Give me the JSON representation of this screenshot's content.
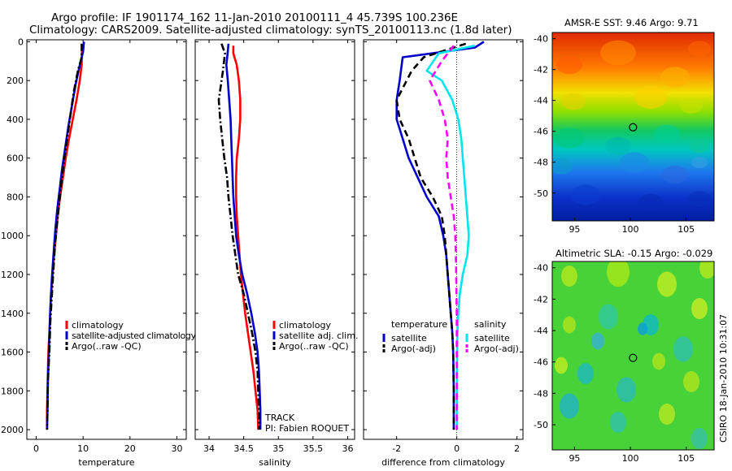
{
  "title_line1": "Argo profile: IF 1901174_162 11-Jan-2010 20100111_4 45.739S 100.236E",
  "title_line2": "Climatology: CARS2009. Satellite-adjusted climatology: synTS_20100113.nc (1.8d later)",
  "map_titles": [
    "AMSR-E SST: 9.46 Argo: 9.71",
    "Altimetric SLA: -0.15 Argo: -0.029"
  ],
  "credit": "CSIRO 18-Jan-2010 10:31:07",
  "colors": {
    "climatology": "#ff0000",
    "satellite": "#0000cc",
    "argo": "#000000",
    "salinity_satellite": "#00e5ee",
    "salinity_argo": "#ff00ff"
  },
  "chart_data": [
    {
      "type": "line",
      "xlabel": "temperature",
      "x_ticks": [
        "0",
        "10",
        "20",
        "30"
      ],
      "y_ticks": [
        "0",
        "200",
        "400",
        "600",
        "800",
        "1000",
        "1200",
        "1400",
        "1600",
        "1800",
        "2000"
      ],
      "xlim": [
        -2,
        32
      ],
      "ylim": [
        2050,
        -10
      ],
      "y_reversed": true,
      "legend_position": "lower-center",
      "legend": [
        "climatology",
        "satellite-adjusted climatology",
        "Argo(..raw -QC)"
      ],
      "series": [
        {
          "name": "climatology",
          "style": "solid",
          "color_key": "climatology",
          "points": [
            [
              9.8,
              20
            ],
            [
              9.7,
              120
            ],
            [
              9.3,
              200
            ],
            [
              8.6,
              300
            ],
            [
              7.8,
              400
            ],
            [
              7.0,
              500
            ],
            [
              6.3,
              600
            ],
            [
              5.7,
              700
            ],
            [
              5.1,
              800
            ],
            [
              4.6,
              900
            ],
            [
              4.2,
              1000
            ],
            [
              3.8,
              1100
            ],
            [
              3.5,
              1200
            ],
            [
              3.2,
              1300
            ],
            [
              3.0,
              1400
            ],
            [
              2.8,
              1500
            ],
            [
              2.6,
              1600
            ],
            [
              2.5,
              1700
            ],
            [
              2.4,
              1800
            ],
            [
              2.3,
              1900
            ],
            [
              2.3,
              2000
            ]
          ]
        },
        {
          "name": "satellite-adjusted climatology",
          "style": "solid",
          "color_key": "satellite",
          "points": [
            [
              10.2,
              0
            ],
            [
              10.1,
              20
            ],
            [
              10.0,
              50
            ],
            [
              9.2,
              130
            ],
            [
              8.4,
              220
            ],
            [
              7.7,
              320
            ],
            [
              6.9,
              430
            ],
            [
              6.1,
              560
            ],
            [
              5.5,
              660
            ],
            [
              5.0,
              760
            ],
            [
              4.5,
              860
            ],
            [
              4.1,
              960
            ],
            [
              3.8,
              1060
            ],
            [
              3.4,
              1200
            ],
            [
              3.1,
              1320
            ],
            [
              2.9,
              1450
            ],
            [
              2.7,
              1600
            ],
            [
              2.5,
              1750
            ],
            [
              2.4,
              1900
            ],
            [
              2.3,
              2000
            ]
          ]
        },
        {
          "name": "Argo(..raw -QC)",
          "style": "dashdot",
          "color_key": "argo",
          "points": [
            [
              9.7,
              10
            ],
            [
              9.7,
              80
            ],
            [
              8.9,
              150
            ],
            [
              8.0,
              260
            ],
            [
              7.3,
              380
            ],
            [
              6.6,
              500
            ],
            [
              6.0,
              600
            ],
            [
              5.4,
              720
            ],
            [
              4.9,
              830
            ],
            [
              4.4,
              950
            ],
            [
              4.0,
              1050
            ],
            [
              3.6,
              1200
            ],
            [
              3.3,
              1320
            ],
            [
              3.0,
              1450
            ],
            [
              2.8,
              1600
            ],
            [
              2.5,
              1750
            ],
            [
              2.4,
              1900
            ],
            [
              2.3,
              2000
            ]
          ]
        }
      ]
    },
    {
      "type": "line",
      "xlabel": "salinity",
      "x_ticks": [
        "34",
        "34.5",
        "35",
        "35.5",
        "36"
      ],
      "y_ticks": [],
      "xlim": [
        33.8,
        36.1
      ],
      "ylim": [
        2050,
        -10
      ],
      "y_reversed": true,
      "legend_position": "lower-center",
      "legend": [
        "climatology",
        "satellite adj. clim.",
        "Argo(..raw -QC)"
      ],
      "annotations": [
        "TRACK",
        "PI: Fabien ROQUET"
      ],
      "series": [
        {
          "name": "climatology",
          "style": "solid",
          "color_key": "climatology",
          "points": [
            [
              34.35,
              20
            ],
            [
              34.35,
              60
            ],
            [
              34.4,
              120
            ],
            [
              34.43,
              200
            ],
            [
              34.45,
              300
            ],
            [
              34.45,
              400
            ],
            [
              34.43,
              500
            ],
            [
              34.4,
              600
            ],
            [
              34.39,
              700
            ],
            [
              34.39,
              800
            ],
            [
              34.4,
              900
            ],
            [
              34.42,
              1000
            ],
            [
              34.44,
              1100
            ],
            [
              34.46,
              1200
            ],
            [
              34.49,
              1300
            ],
            [
              34.52,
              1400
            ],
            [
              34.56,
              1500
            ],
            [
              34.6,
              1600
            ],
            [
              34.64,
              1700
            ],
            [
              34.67,
              1800
            ],
            [
              34.7,
              1900
            ],
            [
              34.71,
              2000
            ]
          ]
        },
        {
          "name": "satellite adj. clim.",
          "style": "solid",
          "color_key": "satellite",
          "points": [
            [
              34.28,
              10
            ],
            [
              34.27,
              50
            ],
            [
              34.25,
              120
            ],
            [
              34.27,
              200
            ],
            [
              34.29,
              300
            ],
            [
              34.31,
              400
            ],
            [
              34.32,
              500
            ],
            [
              34.33,
              600
            ],
            [
              34.34,
              700
            ],
            [
              34.35,
              800
            ],
            [
              34.37,
              900
            ],
            [
              34.39,
              1000
            ],
            [
              34.43,
              1100
            ],
            [
              34.48,
              1200
            ],
            [
              34.55,
              1300
            ],
            [
              34.61,
              1400
            ],
            [
              34.66,
              1500
            ],
            [
              34.7,
              1600
            ],
            [
              34.72,
              1700
            ],
            [
              34.73,
              1800
            ],
            [
              34.74,
              1900
            ],
            [
              34.74,
              2000
            ]
          ]
        },
        {
          "name": "Argo(..raw -QC)",
          "style": "dashdot",
          "color_key": "argo",
          "points": [
            [
              34.18,
              10
            ],
            [
              34.23,
              60
            ],
            [
              34.2,
              150
            ],
            [
              34.14,
              300
            ],
            [
              34.16,
              400
            ],
            [
              34.19,
              500
            ],
            [
              34.22,
              600
            ],
            [
              34.26,
              700
            ],
            [
              34.28,
              800
            ],
            [
              34.31,
              900
            ],
            [
              34.34,
              1000
            ],
            [
              34.38,
              1100
            ],
            [
              34.42,
              1200
            ],
            [
              34.5,
              1300
            ],
            [
              34.56,
              1400
            ],
            [
              34.62,
              1500
            ],
            [
              34.67,
              1600
            ],
            [
              34.7,
              1700
            ],
            [
              34.71,
              1800
            ],
            [
              34.72,
              1900
            ],
            [
              34.72,
              2000
            ]
          ]
        }
      ]
    },
    {
      "type": "line",
      "xlabel": "difference from climatology",
      "x_ticks": [
        "-2",
        "0",
        "2"
      ],
      "y_ticks": [],
      "xlim": [
        -3.1,
        2.2
      ],
      "ylim": [
        2050,
        -10
      ],
      "y_reversed": true,
      "zero_line": true,
      "legend_position": "lower-center",
      "legend_groups": [
        {
          "header": "temperature",
          "entries": [
            "satellite",
            "Argo(-adj)"
          ]
        },
        {
          "header": "salinity",
          "entries": [
            "satellite",
            "Argo(-adj)"
          ]
        }
      ],
      "series": [
        {
          "name": "temperature satellite",
          "style": "solid",
          "color_key": "satellite",
          "points": [
            [
              0.9,
              0
            ],
            [
              0.6,
              30
            ],
            [
              -1.8,
              80
            ],
            [
              -1.9,
              200
            ],
            [
              -2.0,
              300
            ],
            [
              -2.0,
              400
            ],
            [
              -1.8,
              500
            ],
            [
              -1.6,
              600
            ],
            [
              -1.3,
              700
            ],
            [
              -1.0,
              800
            ],
            [
              -0.6,
              900
            ],
            [
              -0.45,
              1000
            ],
            [
              -0.35,
              1100
            ],
            [
              -0.3,
              1200
            ],
            [
              -0.25,
              1300
            ],
            [
              -0.2,
              1400
            ],
            [
              -0.15,
              1500
            ],
            [
              -0.12,
              1600
            ],
            [
              -0.1,
              1800
            ],
            [
              -0.1,
              2000
            ]
          ]
        },
        {
          "name": "temperature Argo(-adj)",
          "style": "dashed",
          "color_key": "argo",
          "points": [
            [
              0.3,
              10
            ],
            [
              -1.1,
              80
            ],
            [
              -1.5,
              150
            ],
            [
              -2.0,
              300
            ],
            [
              -1.9,
              400
            ],
            [
              -1.6,
              500
            ],
            [
              -1.4,
              600
            ],
            [
              -1.2,
              700
            ],
            [
              -0.8,
              800
            ],
            [
              -0.5,
              900
            ],
            [
              -0.4,
              1000
            ],
            [
              -0.35,
              1100
            ],
            [
              -0.3,
              1200
            ],
            [
              -0.25,
              1300
            ],
            [
              -0.2,
              1400
            ],
            [
              -0.15,
              1500
            ],
            [
              -0.12,
              1600
            ],
            [
              -0.1,
              1800
            ],
            [
              -0.1,
              2000
            ]
          ]
        },
        {
          "name": "salinity satellite",
          "style": "solid",
          "color_key": "salinity_satellite",
          "points": [
            [
              0.6,
              20
            ],
            [
              -0.6,
              60
            ],
            [
              -1.0,
              150
            ],
            [
              -0.5,
              200
            ],
            [
              -0.15,
              300
            ],
            [
              0.05,
              400
            ],
            [
              0.15,
              500
            ],
            [
              0.2,
              600
            ],
            [
              0.25,
              700
            ],
            [
              0.3,
              800
            ],
            [
              0.35,
              900
            ],
            [
              0.4,
              1000
            ],
            [
              0.35,
              1100
            ],
            [
              0.2,
              1200
            ],
            [
              0.1,
              1300
            ],
            [
              0.05,
              1400
            ],
            [
              0.02,
              1500
            ],
            [
              0.0,
              1700
            ],
            [
              0.0,
              2000
            ]
          ]
        },
        {
          "name": "salinity Argo(-adj)",
          "style": "dashed",
          "color_key": "salinity_argo",
          "points": [
            [
              -0.1,
              20
            ],
            [
              -0.5,
              100
            ],
            [
              -0.9,
              200
            ],
            [
              -0.6,
              300
            ],
            [
              -0.4,
              400
            ],
            [
              -0.3,
              500
            ],
            [
              -0.35,
              600
            ],
            [
              -0.3,
              700
            ],
            [
              -0.2,
              800
            ],
            [
              -0.1,
              900
            ],
            [
              -0.05,
              1000
            ],
            [
              -0.03,
              1100
            ],
            [
              -0.02,
              1200
            ],
            [
              0.0,
              1400
            ],
            [
              0.0,
              2000
            ]
          ]
        }
      ]
    },
    {
      "type": "heatmap",
      "title": "AMSR-E SST: 9.46 Argo: 9.71",
      "x_ticks": [
        "95",
        "100",
        "105"
      ],
      "y_ticks": [
        "-40",
        "-42",
        "-44",
        "-46",
        "-48",
        "-50"
      ],
      "xlim": [
        93,
        107.5
      ],
      "ylim": [
        -51.8,
        -39.6
      ],
      "marker": [
        100.236,
        -45.739
      ]
    },
    {
      "type": "heatmap",
      "title": "Altimetric SLA: -0.15 Argo: -0.029",
      "x_ticks": [
        "95",
        "100",
        "105"
      ],
      "y_ticks": [
        "-40",
        "-42",
        "-44",
        "-46",
        "-48",
        "-50"
      ],
      "xlim": [
        93,
        107.5
      ],
      "ylim": [
        -51.6,
        -39.6
      ],
      "marker": [
        100.236,
        -45.739
      ]
    }
  ]
}
